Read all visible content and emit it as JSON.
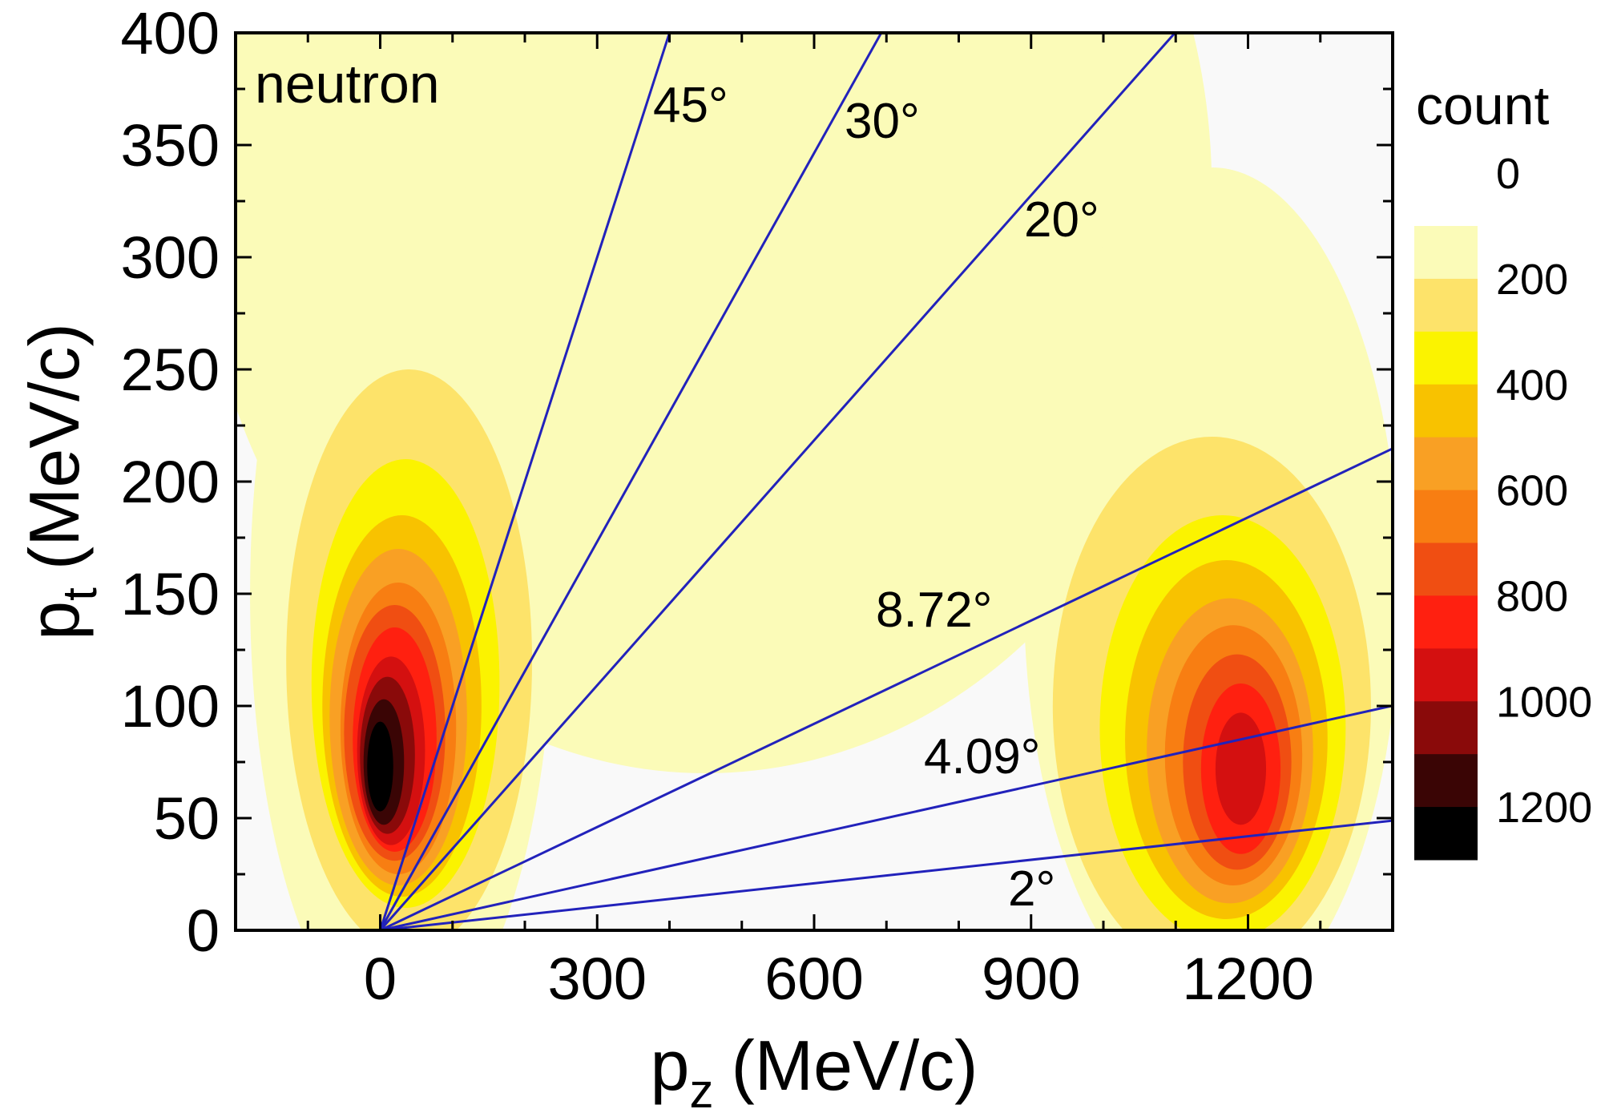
{
  "chart_data": {
    "type": "contour",
    "annotation": "neutron",
    "xlabel": {
      "text": "p",
      "sub": "z",
      "unit": "(MeV/c)"
    },
    "ylabel": {
      "text": "p",
      "sub": "t",
      "unit": "(MeV/c)"
    },
    "xlim": [
      -200,
      1400
    ],
    "xticks": [
      0,
      300,
      600,
      900,
      1200
    ],
    "xminorticks": [
      -100,
      100,
      200,
      400,
      500,
      700,
      800,
      1000,
      1100,
      1300
    ],
    "ylim": [
      0,
      400
    ],
    "yticks": [
      0,
      50,
      100,
      150,
      200,
      250,
      300,
      350,
      400
    ],
    "yminorticks": [
      25,
      75,
      125,
      175,
      225,
      275,
      325,
      375
    ],
    "colorbar": {
      "title": "count",
      "levels": [
        100,
        200,
        300,
        400,
        500,
        600,
        700,
        800,
        900,
        1000,
        1100,
        1200,
        1300
      ],
      "colors": [
        "#fbfbb8",
        "#fde36a",
        "#fbf300",
        "#f8c200",
        "#f9a024",
        "#f87e12",
        "#f04e12",
        "#ff2010",
        "#d41010",
        "#8a0a0a",
        "#3a0505",
        "#000000"
      ],
      "ticks": [
        0,
        200,
        400,
        600,
        800,
        1000,
        1200
      ]
    },
    "contours": [
      {
        "level": 100,
        "cx": 450,
        "cy": 330,
        "rx": 700,
        "ry": 260
      },
      {
        "level": 100,
        "cx": 30,
        "cy": 150,
        "rx": 210,
        "ry": 200
      },
      {
        "level": 100,
        "cx": 1150,
        "cy": 150,
        "rx": 260,
        "ry": 190
      },
      {
        "level": 200,
        "cx": 40,
        "cy": 120,
        "rx": 170,
        "ry": 130
      },
      {
        "level": 300,
        "cx": 35,
        "cy": 110,
        "rx": 130,
        "ry": 100
      },
      {
        "level": 400,
        "cx": 30,
        "cy": 100,
        "rx": 110,
        "ry": 85
      },
      {
        "level": 500,
        "cx": 25,
        "cy": 95,
        "rx": 95,
        "ry": 75
      },
      {
        "level": 600,
        "cx": 25,
        "cy": 90,
        "rx": 80,
        "ry": 65
      },
      {
        "level": 700,
        "cx": 20,
        "cy": 88,
        "rx": 70,
        "ry": 57
      },
      {
        "level": 800,
        "cx": 20,
        "cy": 85,
        "rx": 58,
        "ry": 50
      },
      {
        "level": 900,
        "cx": 15,
        "cy": 80,
        "rx": 47,
        "ry": 42
      },
      {
        "level": 1000,
        "cx": 10,
        "cy": 78,
        "rx": 38,
        "ry": 35
      },
      {
        "level": 1100,
        "cx": 5,
        "cy": 75,
        "rx": 28,
        "ry": 28
      },
      {
        "level": 1200,
        "cx": 0,
        "cy": 73,
        "rx": 18,
        "ry": 20
      },
      {
        "level": 200,
        "cx": 1150,
        "cy": 100,
        "rx": 220,
        "ry": 120
      },
      {
        "level": 300,
        "cx": 1165,
        "cy": 90,
        "rx": 170,
        "ry": 95
      },
      {
        "level": 400,
        "cx": 1170,
        "cy": 85,
        "rx": 140,
        "ry": 80
      },
      {
        "level": 500,
        "cx": 1175,
        "cy": 80,
        "rx": 115,
        "ry": 68
      },
      {
        "level": 600,
        "cx": 1180,
        "cy": 78,
        "rx": 95,
        "ry": 58
      },
      {
        "level": 700,
        "cx": 1185,
        "cy": 75,
        "rx": 75,
        "ry": 48
      },
      {
        "level": 800,
        "cx": 1190,
        "cy": 72,
        "rx": 55,
        "ry": 38
      },
      {
        "level": 900,
        "cx": 1190,
        "cy": 72,
        "rx": 35,
        "ry": 25
      }
    ],
    "line_color": "#2222bb",
    "lines": [
      {
        "angle": 45,
        "label": "45°"
      },
      {
        "angle": 30,
        "label": "30°"
      },
      {
        "angle": 20,
        "label": "20°"
      },
      {
        "angle": 8.72,
        "label": "8.72°"
      },
      {
        "angle": 4.09,
        "label": "4.09°"
      },
      {
        "angle": 2,
        "label": "2°"
      }
    ]
  }
}
